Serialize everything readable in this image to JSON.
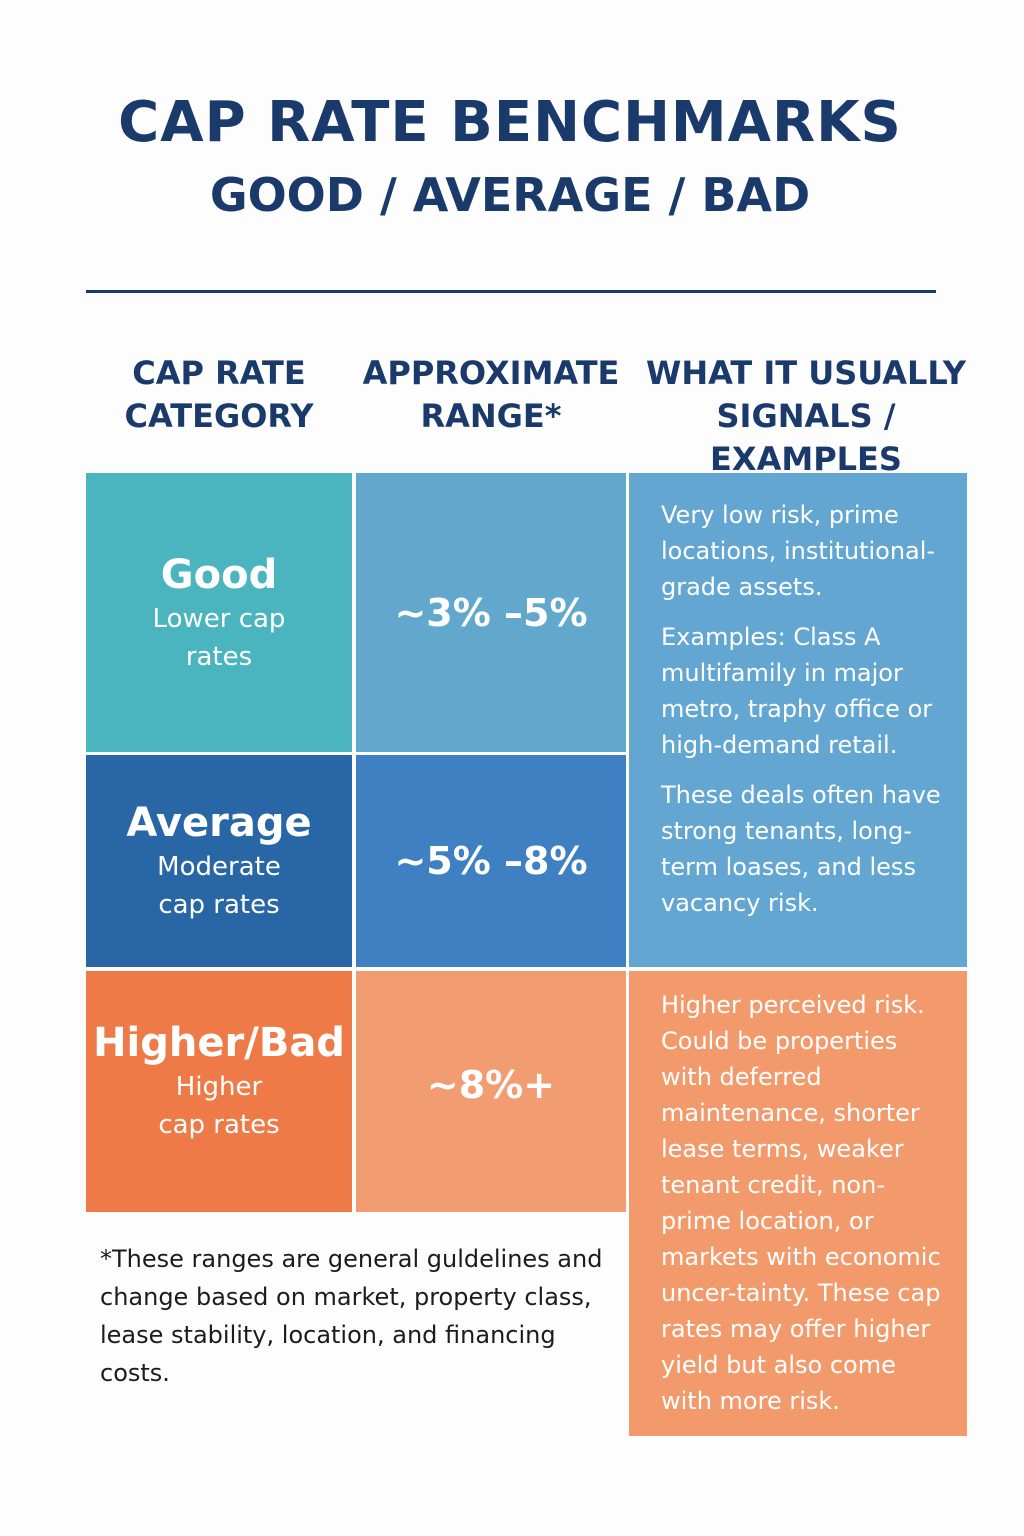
{
  "header": {
    "title": "CAP RATE BENCHMARKS",
    "subtitle": "GOOD / AVERAGE / BAD"
  },
  "columns": {
    "category": "CAP RATE\nCATEGORY",
    "range": "APPROXIMATE\nRANGE*",
    "signals": "WHAT IT USUALLY\nSIGNALS / EXAMPLES"
  },
  "rows": [
    {
      "name": "Good",
      "sub": "Lower cap\nrates",
      "range": "~3% –5%"
    },
    {
      "name": "Average",
      "sub": "Moderate\ncap rates",
      "range": "~5% –8%"
    },
    {
      "name": "Higher/Bad",
      "sub": "Higher\ncap rates",
      "range": "~8%+"
    }
  ],
  "signals": {
    "low_moderate": [
      "Very low risk, prime locations, institutional-grade assets.",
      "Examples: Class A multifamily in major metro, traphy office or high-demand retail.",
      "These deals often have strong tenants, long-term loases, and less vacancy risk."
    ],
    "high": "Higher perceived risk. Could be properties with deferred maintenance, shorter lease terms, weaker tenant credit, non-prime location, or markets with economic uncer-tainty. These cap rates may offer higher yield but also come with more risk."
  },
  "footnote": "*These ranges are general guldelines and change based on market, property class, lease stability, location, and financing costs.",
  "colors": {
    "navy": "#1a3a6b",
    "good_category": "#4ab4bf",
    "good_range": "#62a8cd",
    "average_category": "#2866a6",
    "average_range": "#3e80c1",
    "signals_blue": "#63a6d1",
    "bad_category": "#ee7a47",
    "bad_range": "#f29c72",
    "signals_orange": "#f39a6d"
  }
}
